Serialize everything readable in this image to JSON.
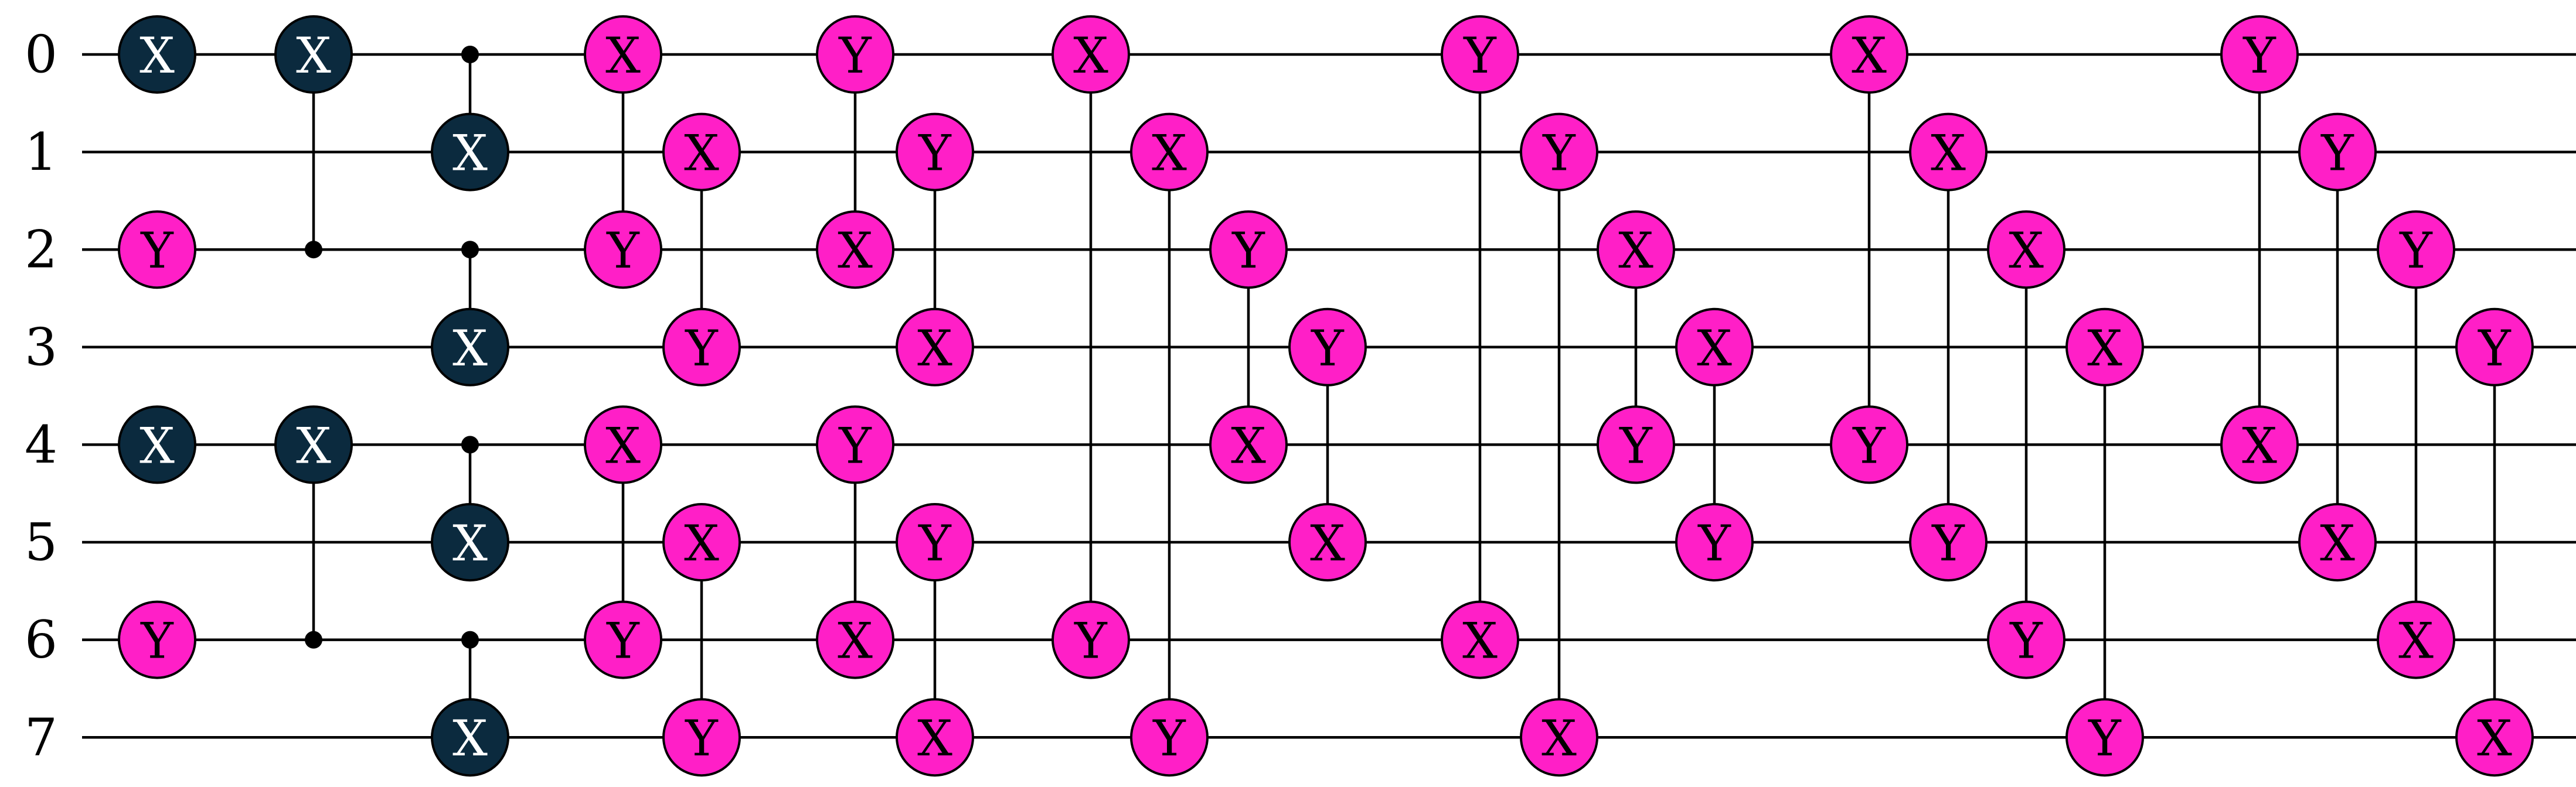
{
  "qubits": [
    "0",
    "1",
    "2",
    "3",
    "4",
    "5",
    "6",
    "7"
  ],
  "colors": {
    "pink_fill": "#ff1fc7",
    "pink_text": "#000000",
    "dark_fill": "#0b2a3e",
    "dark_text": "#ffffff",
    "wire": "#000000"
  },
  "columns": [
    {
      "gates": [
        {
          "q": 0,
          "label": "X",
          "style": "dark"
        },
        {
          "q": 2,
          "label": "Y",
          "style": "pink"
        },
        {
          "q": 4,
          "label": "X",
          "style": "dark"
        },
        {
          "q": 6,
          "label": "Y",
          "style": "pink"
        }
      ],
      "links": []
    },
    {
      "gates": [
        {
          "q": 0,
          "label": "X",
          "style": "dark"
        },
        {
          "q": 4,
          "label": "X",
          "style": "dark"
        }
      ],
      "controls": [
        2,
        6
      ],
      "links": [
        [
          0,
          2
        ],
        [
          4,
          6
        ]
      ]
    },
    {
      "gates": [
        {
          "q": 1,
          "label": "X",
          "style": "dark"
        },
        {
          "q": 3,
          "label": "X",
          "style": "dark"
        },
        {
          "q": 5,
          "label": "X",
          "style": "dark"
        },
        {
          "q": 7,
          "label": "X",
          "style": "dark"
        }
      ],
      "controls": [
        0,
        2,
        4,
        6
      ],
      "links": [
        [
          0,
          1
        ],
        [
          2,
          3
        ],
        [
          4,
          5
        ],
        [
          6,
          7
        ]
      ]
    },
    {
      "gates": [
        {
          "q": 0,
          "label": "X",
          "style": "pink"
        },
        {
          "q": 2,
          "label": "Y",
          "style": "pink"
        },
        {
          "q": 4,
          "label": "X",
          "style": "pink"
        },
        {
          "q": 6,
          "label": "Y",
          "style": "pink"
        }
      ],
      "links": [
        [
          0,
          2
        ],
        [
          4,
          6
        ]
      ]
    },
    {
      "gates": [
        {
          "q": 1,
          "label": "X",
          "style": "pink"
        },
        {
          "q": 3,
          "label": "Y",
          "style": "pink"
        },
        {
          "q": 5,
          "label": "X",
          "style": "pink"
        },
        {
          "q": 7,
          "label": "Y",
          "style": "pink"
        }
      ],
      "links": [
        [
          1,
          3
        ],
        [
          5,
          7
        ]
      ]
    },
    {
      "gates": [
        {
          "q": 0,
          "label": "Y",
          "style": "pink"
        },
        {
          "q": 2,
          "label": "X",
          "style": "pink"
        },
        {
          "q": 4,
          "label": "Y",
          "style": "pink"
        },
        {
          "q": 6,
          "label": "X",
          "style": "pink"
        }
      ],
      "links": [
        [
          0,
          2
        ],
        [
          4,
          6
        ]
      ]
    },
    {
      "gates": [
        {
          "q": 1,
          "label": "Y",
          "style": "pink"
        },
        {
          "q": 3,
          "label": "X",
          "style": "pink"
        },
        {
          "q": 5,
          "label": "Y",
          "style": "pink"
        },
        {
          "q": 7,
          "label": "X",
          "style": "pink"
        }
      ],
      "links": [
        [
          1,
          3
        ],
        [
          5,
          7
        ]
      ]
    },
    {
      "gates": [
        {
          "q": 0,
          "label": "X",
          "style": "pink"
        },
        {
          "q": 6,
          "label": "Y",
          "style": "pink"
        }
      ],
      "links": [
        [
          0,
          6
        ]
      ]
    },
    {
      "gates": [
        {
          "q": 1,
          "label": "X",
          "style": "pink"
        },
        {
          "q": 7,
          "label": "Y",
          "style": "pink"
        }
      ],
      "links": [
        [
          1,
          7
        ]
      ]
    },
    {
      "gates": [
        {
          "q": 2,
          "label": "Y",
          "style": "pink"
        },
        {
          "q": 4,
          "label": "X",
          "style": "pink"
        }
      ],
      "links": [
        [
          2,
          4
        ]
      ]
    },
    {
      "gates": [
        {
          "q": 3,
          "label": "Y",
          "style": "pink"
        },
        {
          "q": 5,
          "label": "X",
          "style": "pink"
        }
      ],
      "links": [
        [
          3,
          5
        ]
      ]
    },
    {
      "gates": [
        {
          "q": 0,
          "label": "Y",
          "style": "pink"
        },
        {
          "q": 6,
          "label": "X",
          "style": "pink"
        }
      ],
      "links": [
        [
          0,
          6
        ]
      ]
    },
    {
      "gates": [
        {
          "q": 1,
          "label": "Y",
          "style": "pink"
        },
        {
          "q": 7,
          "label": "X",
          "style": "pink"
        }
      ],
      "links": [
        [
          1,
          7
        ]
      ]
    },
    {
      "gates": [
        {
          "q": 2,
          "label": "X",
          "style": "pink"
        },
        {
          "q": 4,
          "label": "Y",
          "style": "pink"
        }
      ],
      "links": [
        [
          2,
          4
        ]
      ]
    },
    {
      "gates": [
        {
          "q": 3,
          "label": "X",
          "style": "pink"
        },
        {
          "q": 5,
          "label": "Y",
          "style": "pink"
        }
      ],
      "links": [
        [
          3,
          5
        ]
      ]
    },
    {
      "gates": [
        {
          "q": 0,
          "label": "X",
          "style": "pink"
        },
        {
          "q": 4,
          "label": "Y",
          "style": "pink"
        }
      ],
      "links": [
        [
          0,
          4
        ]
      ]
    },
    {
      "gates": [
        {
          "q": 1,
          "label": "X",
          "style": "pink"
        },
        {
          "q": 5,
          "label": "Y",
          "style": "pink"
        }
      ],
      "links": [
        [
          1,
          5
        ]
      ]
    },
    {
      "gates": [
        {
          "q": 2,
          "label": "X",
          "style": "pink"
        },
        {
          "q": 6,
          "label": "Y",
          "style": "pink"
        }
      ],
      "links": [
        [
          2,
          6
        ]
      ]
    },
    {
      "gates": [
        {
          "q": 3,
          "label": "X",
          "style": "pink"
        },
        {
          "q": 7,
          "label": "Y",
          "style": "pink"
        }
      ],
      "links": [
        [
          3,
          7
        ]
      ]
    },
    {
      "gates": [
        {
          "q": 0,
          "label": "Y",
          "style": "pink"
        },
        {
          "q": 4,
          "label": "X",
          "style": "pink"
        }
      ],
      "links": [
        [
          0,
          4
        ]
      ]
    },
    {
      "gates": [
        {
          "q": 1,
          "label": "Y",
          "style": "pink"
        },
        {
          "q": 5,
          "label": "X",
          "style": "pink"
        }
      ],
      "links": [
        [
          1,
          5
        ]
      ]
    },
    {
      "gates": [
        {
          "q": 2,
          "label": "Y",
          "style": "pink"
        },
        {
          "q": 6,
          "label": "X",
          "style": "pink"
        }
      ],
      "links": [
        [
          2,
          6
        ]
      ]
    },
    {
      "gates": [
        {
          "q": 3,
          "label": "Y",
          "style": "pink"
        },
        {
          "q": 7,
          "label": "X",
          "style": "pink"
        }
      ],
      "links": [
        [
          3,
          7
        ]
      ]
    }
  ]
}
